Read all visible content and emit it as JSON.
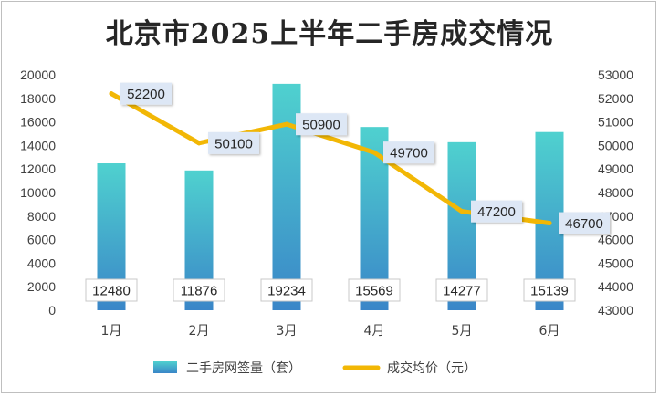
{
  "chart_data": {
    "type": "bar",
    "title": "北京市2025上半年二手房成交情况",
    "categories": [
      "1月",
      "2月",
      "3月",
      "4月",
      "5月",
      "6月"
    ],
    "series": [
      {
        "name": "二手房网签量（套）",
        "type": "bar",
        "axis": "left",
        "values": [
          12480,
          11876,
          19234,
          15569,
          14277,
          15139
        ]
      },
      {
        "name": "成交均价（元）",
        "type": "line",
        "axis": "right",
        "values": [
          52200,
          50100,
          50900,
          49700,
          47200,
          46700
        ]
      }
    ],
    "y_left": {
      "min": 0,
      "max": 20000,
      "step": 2000
    },
    "y_right": {
      "min": 43000,
      "max": 53000,
      "step": 1000
    },
    "grid": false,
    "legend": "bottom",
    "colors": {
      "bar_top": "#4fd1cf",
      "bar_bottom": "#3a86c8",
      "line": "#f2b705",
      "label_bg": "#dde7f5"
    }
  }
}
